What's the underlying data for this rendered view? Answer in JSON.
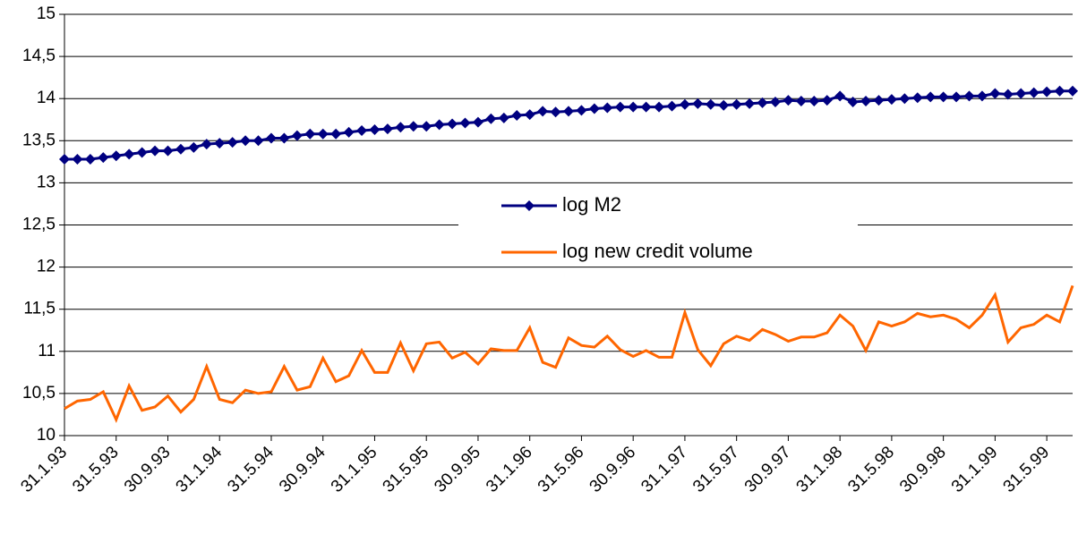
{
  "chart_data": {
    "type": "line",
    "categories": [
      "31.1.93",
      null,
      null,
      null,
      "31.5.93",
      null,
      null,
      null,
      "30.9.93",
      null,
      null,
      null,
      "31.1.94",
      null,
      null,
      null,
      "31.5.94",
      null,
      null,
      null,
      "30.9.94",
      null,
      null,
      null,
      "31.1.95",
      null,
      null,
      null,
      "31.5.95",
      null,
      null,
      null,
      "30.9.95",
      null,
      null,
      null,
      "31.1.96",
      null,
      null,
      null,
      "31.5.96",
      null,
      null,
      null,
      "30.9.96",
      null,
      null,
      null,
      "31.1.97",
      null,
      null,
      null,
      "31.5.97",
      null,
      null,
      null,
      "30.9.97",
      null,
      null,
      null,
      "31.1.98",
      null,
      null,
      null,
      "31.5.98",
      null,
      null,
      null,
      "30.9.98",
      null,
      null,
      null,
      "31.1.99",
      null,
      null,
      null,
      "31.5.99",
      null,
      null
    ],
    "series": [
      {
        "name": "log M2",
        "color": "#000080",
        "marker": "diamond",
        "values": [
          13.28,
          13.28,
          13.28,
          13.3,
          13.32,
          13.34,
          13.36,
          13.38,
          13.38,
          13.4,
          13.42,
          13.46,
          13.47,
          13.48,
          13.5,
          13.5,
          13.53,
          13.53,
          13.56,
          13.58,
          13.58,
          13.58,
          13.6,
          13.62,
          13.63,
          13.64,
          13.66,
          13.67,
          13.67,
          13.69,
          13.7,
          13.71,
          13.72,
          13.76,
          13.77,
          13.8,
          13.81,
          13.85,
          13.84,
          13.85,
          13.86,
          13.88,
          13.89,
          13.9,
          13.9,
          13.9,
          13.9,
          13.91,
          13.93,
          13.94,
          13.93,
          13.92,
          13.93,
          13.94,
          13.95,
          13.96,
          13.98,
          13.97,
          13.97,
          13.98,
          14.03,
          13.96,
          13.97,
          13.98,
          13.99,
          14.0,
          14.01,
          14.02,
          14.02,
          14.02,
          14.03,
          14.03,
          14.06,
          14.05,
          14.06,
          14.07,
          14.08,
          14.09,
          14.09
        ]
      },
      {
        "name": "log new credit volume",
        "color": "#ff6600",
        "values": [
          10.32,
          10.41,
          10.43,
          10.52,
          10.19,
          10.59,
          10.3,
          10.34,
          10.47,
          10.28,
          10.43,
          10.82,
          10.43,
          10.39,
          10.54,
          10.5,
          10.52,
          10.82,
          10.54,
          10.58,
          10.92,
          10.64,
          10.71,
          11.01,
          10.75,
          10.75,
          11.1,
          10.77,
          11.09,
          11.11,
          10.92,
          10.99,
          10.85,
          11.03,
          11.01,
          11.01,
          11.28,
          10.87,
          10.81,
          11.16,
          11.07,
          11.05,
          11.18,
          11.02,
          10.94,
          11.01,
          10.93,
          10.93,
          11.46,
          11.02,
          10.83,
          11.09,
          11.18,
          11.13,
          11.26,
          11.2,
          11.12,
          11.17,
          11.17,
          11.22,
          11.43,
          11.3,
          11.01,
          11.35,
          11.3,
          11.35,
          11.45,
          11.41,
          11.43,
          11.38,
          11.28,
          11.43,
          11.67,
          11.11,
          11.28,
          11.32,
          11.43,
          11.35,
          11.78
        ]
      }
    ],
    "ylim": [
      10,
      15
    ],
    "yticks": [
      10,
      {
        "value": 10.5,
        "label": "10,5"
      },
      11,
      {
        "value": 11.5,
        "label": "11,5"
      },
      12,
      {
        "value": 12.5,
        "label": "12,5"
      },
      13,
      {
        "value": 13.5,
        "label": "13,5"
      },
      14,
      {
        "value": 14.5,
        "label": "14,5"
      },
      15
    ],
    "grid": true
  }
}
